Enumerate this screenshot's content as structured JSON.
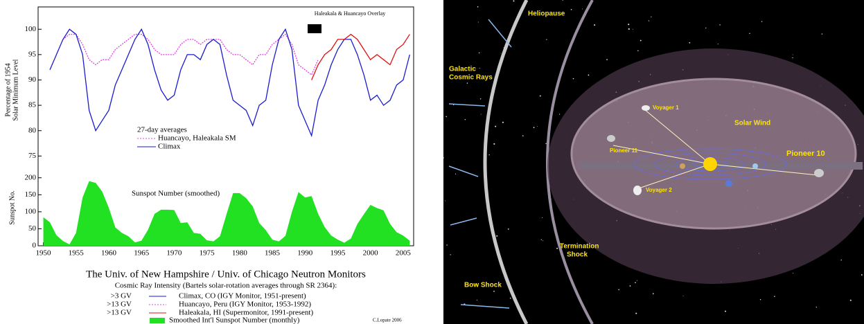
{
  "chart_data": [
    {
      "type": "line",
      "title": "Haleakala & Huancayo Overlay",
      "y_label": [
        "Percentage of 1954",
        "Solar Minimum Level"
      ],
      "legend_title": "27-day averages",
      "x": [
        1950,
        1951,
        1952,
        1953,
        1954,
        1955,
        1956,
        1957,
        1958,
        1959,
        1960,
        1961,
        1962,
        1963,
        1964,
        1965,
        1966,
        1967,
        1968,
        1969,
        1970,
        1971,
        1972,
        1973,
        1974,
        1975,
        1976,
        1977,
        1978,
        1979,
        1980,
        1981,
        1982,
        1983,
        1984,
        1985,
        1986,
        1987,
        1988,
        1989,
        1990,
        1991,
        1992,
        1993,
        1994,
        1995,
        1996,
        1997,
        1998,
        1999,
        2000,
        2001,
        2002,
        2003,
        2004,
        2005,
        2006
      ],
      "series": [
        {
          "name": "Huancayo, Haleakala SM",
          "color": "#e040e0",
          "dash": true,
          "values": [
            null,
            null,
            null,
            98,
            99,
            99,
            97,
            94,
            93,
            94,
            94,
            96,
            97,
            98,
            99,
            99,
            98,
            96,
            95,
            95,
            95,
            97,
            98,
            98,
            97,
            98,
            98,
            98,
            96,
            95,
            95,
            94,
            93,
            95,
            95,
            97,
            98,
            99,
            97,
            93,
            92,
            91,
            94,
            null,
            null,
            null,
            null,
            null,
            null,
            null,
            null,
            null,
            null,
            null,
            null,
            null,
            null
          ]
        },
        {
          "name": "Climax",
          "color": "#1a1ad0",
          "values": [
            null,
            92,
            95,
            98,
            100,
            99,
            95,
            84,
            80,
            82,
            84,
            89,
            92,
            95,
            98,
            100,
            97,
            92,
            88,
            86,
            87,
            92,
            95,
            95,
            94,
            97,
            98,
            97,
            91,
            86,
            85,
            84,
            81,
            85,
            86,
            93,
            98,
            100,
            96,
            85,
            82,
            79,
            86,
            89,
            93,
            96,
            98,
            98,
            95,
            91,
            86,
            87,
            85,
            86,
            89,
            90,
            95
          ]
        },
        {
          "color": "#e01010",
          "values": [
            null,
            null,
            null,
            null,
            null,
            null,
            null,
            null,
            null,
            null,
            null,
            null,
            null,
            null,
            null,
            null,
            null,
            null,
            null,
            null,
            null,
            null,
            null,
            null,
            null,
            null,
            null,
            null,
            null,
            null,
            null,
            null,
            null,
            null,
            null,
            null,
            null,
            null,
            null,
            null,
            null,
            90,
            93,
            95,
            96,
            98,
            98,
            99,
            98,
            96,
            94,
            95,
            94,
            93,
            96,
            97,
            99
          ]
        }
      ],
      "xlim": [
        1949.2,
        2006.6
      ],
      "xticks": [
        1950,
        1955,
        1960,
        1965,
        1970,
        1975,
        1980,
        1985,
        1990,
        1995,
        2000,
        2005
      ],
      "ylim": [
        73,
        104.4
      ],
      "yticks": [
        75,
        80,
        85,
        90,
        95,
        100
      ]
    },
    {
      "type": "area",
      "title": "Sunspot Number (smoothed)",
      "y_label": "Sunspot No.",
      "x": [
        1950,
        1951,
        1952,
        1953,
        1954,
        1955,
        1956,
        1957,
        1958,
        1959,
        1960,
        1961,
        1962,
        1963,
        1964,
        1965,
        1966,
        1967,
        1968,
        1969,
        1970,
        1971,
        1972,
        1973,
        1974,
        1975,
        1976,
        1977,
        1978,
        1979,
        1980,
        1981,
        1982,
        1983,
        1984,
        1985,
        1986,
        1987,
        1988,
        1989,
        1990,
        1991,
        1992,
        1993,
        1994,
        1995,
        1996,
        1997,
        1998,
        1999,
        2000,
        2001,
        2002,
        2003,
        2004,
        2005,
        2006
      ],
      "values": [
        84,
        69,
        31,
        14,
        4,
        38,
        142,
        190,
        185,
        159,
        112,
        54,
        38,
        28,
        10,
        15,
        47,
        94,
        106,
        106,
        105,
        67,
        69,
        38,
        35,
        16,
        13,
        28,
        93,
        155,
        155,
        140,
        116,
        67,
        46,
        18,
        13,
        29,
        100,
        158,
        142,
        146,
        94,
        55,
        30,
        18,
        9,
        21,
        64,
        93,
        120,
        111,
        104,
        64,
        40,
        30,
        15
      ],
      "color": "#22e022",
      "xlim": [
        1949.2,
        2006.6
      ],
      "xticks": [
        1950,
        1955,
        1960,
        1965,
        1970,
        1975,
        1980,
        1985,
        1990,
        1995,
        2000,
        2005
      ],
      "ylim": [
        0,
        228
      ],
      "yticks": [
        0,
        50,
        100,
        150,
        200
      ]
    }
  ],
  "footer": {
    "title": "The Univ. of New Hampshire / Univ. of Chicago Neutron Monitors",
    "subtitle": "Cosmic Ray Intensity (Bartels solar-rotation averages through SR 2364):",
    "rows": [
      [
        ">3 GV",
        "Climax, CO (IGY Monitor, 1951-present)"
      ],
      [
        ">13 GV",
        "Huancayo, Peru (IGY Monitor, 1953-1992)"
      ],
      [
        ">13 GV",
        "Haleakala, HI (Supermonitor, 1991-present)"
      ]
    ],
    "sunspot_note": "Smoothed Int'l Sunspot Number (monthly)",
    "credit": "C.Lopate 2006"
  },
  "diagram": {
    "heliopause": "Heliopause",
    "cosmic_rays": [
      "Galactic",
      "Cosmic Rays"
    ],
    "solar_wind": "Solar Wind",
    "voyager1": "Voyager 1",
    "pioneer11": "Pioneer 11",
    "pioneer10": "Pioneer 10",
    "voyager2": "Voyager 2",
    "termination_shock": [
      "Termination",
      "Shock"
    ],
    "bow_shock": "Bow Shock"
  }
}
